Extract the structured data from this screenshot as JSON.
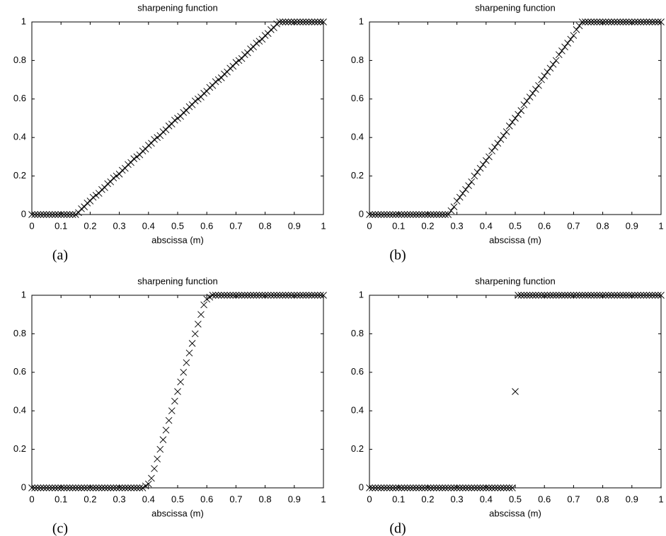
{
  "chart_data": [
    {
      "type": "scatter",
      "title": "sharpening function",
      "xlabel": "abscissa (m)",
      "panel_label": "(a)",
      "marker": "x",
      "color": "#000000",
      "x": [
        0,
        0.01,
        0.02,
        0.03,
        0.04,
        0.05,
        0.06,
        0.07,
        0.08,
        0.09,
        0.1,
        0.11,
        0.12,
        0.13,
        0.14,
        0.15,
        0.16,
        0.17,
        0.18,
        0.19,
        0.2,
        0.21,
        0.22,
        0.23,
        0.24,
        0.25,
        0.26,
        0.27,
        0.28,
        0.29,
        0.3,
        0.31,
        0.32,
        0.33,
        0.34,
        0.35,
        0.36,
        0.37,
        0.38,
        0.39,
        0.4,
        0.41,
        0.42,
        0.43,
        0.44,
        0.45,
        0.46,
        0.47,
        0.48,
        0.49,
        0.5,
        0.51,
        0.52,
        0.53,
        0.54,
        0.55,
        0.56,
        0.57,
        0.58,
        0.59,
        0.6,
        0.61,
        0.62,
        0.63,
        0.64,
        0.65,
        0.66,
        0.67,
        0.68,
        0.69,
        0.7,
        0.71,
        0.72,
        0.73,
        0.74,
        0.75,
        0.76,
        0.77,
        0.78,
        0.79,
        0.8,
        0.81,
        0.82,
        0.83,
        0.84,
        0.85,
        0.86,
        0.87,
        0.88,
        0.89,
        0.9,
        0.91,
        0.92,
        0.93,
        0.94,
        0.95,
        0.96,
        0.97,
        0.98,
        0.99,
        1
      ],
      "values": [
        0,
        0,
        0,
        0,
        0,
        0,
        0,
        0,
        0,
        0,
        0,
        0,
        0,
        0,
        0,
        0,
        0.01,
        0.03,
        0.04,
        0.06,
        0.07,
        0.09,
        0.1,
        0.11,
        0.13,
        0.14,
        0.16,
        0.17,
        0.19,
        0.2,
        0.21,
        0.23,
        0.24,
        0.26,
        0.27,
        0.29,
        0.3,
        0.31,
        0.33,
        0.34,
        0.36,
        0.37,
        0.39,
        0.4,
        0.41,
        0.43,
        0.44,
        0.46,
        0.47,
        0.49,
        0.5,
        0.51,
        0.53,
        0.54,
        0.56,
        0.57,
        0.59,
        0.6,
        0.61,
        0.63,
        0.64,
        0.66,
        0.67,
        0.69,
        0.7,
        0.71,
        0.73,
        0.74,
        0.76,
        0.77,
        0.79,
        0.8,
        0.81,
        0.83,
        0.84,
        0.86,
        0.87,
        0.89,
        0.9,
        0.91,
        0.93,
        0.94,
        0.96,
        0.97,
        0.99,
        1,
        1,
        1,
        1,
        1,
        1,
        1,
        1,
        1,
        1,
        1,
        1,
        1,
        1,
        1,
        1
      ],
      "xlim": [
        0,
        1
      ],
      "ylim": [
        0,
        1
      ],
      "xticks": [
        0,
        0.1,
        0.2,
        0.3,
        0.4,
        0.5,
        0.6,
        0.7,
        0.8,
        0.9,
        1
      ],
      "yticks": [
        0,
        0.2,
        0.4,
        0.6,
        0.8,
        1
      ]
    },
    {
      "type": "scatter",
      "title": "sharpening function",
      "xlabel": "abscissa (m)",
      "panel_label": "(b)",
      "marker": "x",
      "color": "#000000",
      "x": [
        0,
        0.01,
        0.02,
        0.03,
        0.04,
        0.05,
        0.06,
        0.07,
        0.08,
        0.09,
        0.1,
        0.11,
        0.12,
        0.13,
        0.14,
        0.15,
        0.16,
        0.17,
        0.18,
        0.19,
        0.2,
        0.21,
        0.22,
        0.23,
        0.24,
        0.25,
        0.26,
        0.27,
        0.28,
        0.29,
        0.3,
        0.31,
        0.32,
        0.33,
        0.34,
        0.35,
        0.36,
        0.37,
        0.38,
        0.39,
        0.4,
        0.41,
        0.42,
        0.43,
        0.44,
        0.45,
        0.46,
        0.47,
        0.48,
        0.49,
        0.5,
        0.51,
        0.52,
        0.53,
        0.54,
        0.55,
        0.56,
        0.57,
        0.58,
        0.59,
        0.6,
        0.61,
        0.62,
        0.63,
        0.64,
        0.65,
        0.66,
        0.67,
        0.68,
        0.69,
        0.7,
        0.71,
        0.72,
        0.73,
        0.74,
        0.75,
        0.76,
        0.77,
        0.78,
        0.79,
        0.8,
        0.81,
        0.82,
        0.83,
        0.84,
        0.85,
        0.86,
        0.87,
        0.88,
        0.89,
        0.9,
        0.91,
        0.92,
        0.93,
        0.94,
        0.95,
        0.96,
        0.97,
        0.98,
        0.99,
        1
      ],
      "values": [
        0,
        0,
        0,
        0,
        0,
        0,
        0,
        0,
        0,
        0,
        0,
        0,
        0,
        0,
        0,
        0,
        0,
        0,
        0,
        0,
        0,
        0,
        0,
        0,
        0,
        0,
        0,
        0,
        0.02,
        0.04,
        0.07,
        0.09,
        0.11,
        0.13,
        0.15,
        0.17,
        0.2,
        0.22,
        0.24,
        0.26,
        0.28,
        0.3,
        0.33,
        0.35,
        0.37,
        0.39,
        0.41,
        0.43,
        0.46,
        0.48,
        0.5,
        0.52,
        0.54,
        0.57,
        0.59,
        0.61,
        0.63,
        0.65,
        0.67,
        0.7,
        0.72,
        0.74,
        0.76,
        0.78,
        0.8,
        0.83,
        0.85,
        0.87,
        0.89,
        0.91,
        0.93,
        0.96,
        0.98,
        1,
        1,
        1,
        1,
        1,
        1,
        1,
        1,
        1,
        1,
        1,
        1,
        1,
        1,
        1,
        1,
        1,
        1,
        1,
        1,
        1,
        1,
        1,
        1,
        1,
        1,
        1,
        1
      ],
      "xlim": [
        0,
        1
      ],
      "ylim": [
        0,
        1
      ],
      "xticks": [
        0,
        0.1,
        0.2,
        0.3,
        0.4,
        0.5,
        0.6,
        0.7,
        0.8,
        0.9,
        1
      ],
      "yticks": [
        0,
        0.2,
        0.4,
        0.6,
        0.8,
        1
      ]
    },
    {
      "type": "scatter",
      "title": "sharpening function",
      "xlabel": "abscissa (m)",
      "panel_label": "(c)",
      "marker": "x",
      "color": "#000000",
      "x": [
        0,
        0.01,
        0.02,
        0.03,
        0.04,
        0.05,
        0.06,
        0.07,
        0.08,
        0.09,
        0.1,
        0.11,
        0.12,
        0.13,
        0.14,
        0.15,
        0.16,
        0.17,
        0.18,
        0.19,
        0.2,
        0.21,
        0.22,
        0.23,
        0.24,
        0.25,
        0.26,
        0.27,
        0.28,
        0.29,
        0.3,
        0.31,
        0.32,
        0.33,
        0.34,
        0.35,
        0.36,
        0.37,
        0.38,
        0.39,
        0.4,
        0.41,
        0.42,
        0.43,
        0.44,
        0.45,
        0.46,
        0.47,
        0.48,
        0.49,
        0.5,
        0.51,
        0.52,
        0.53,
        0.54,
        0.55,
        0.56,
        0.57,
        0.58,
        0.59,
        0.6,
        0.61,
        0.62,
        0.63,
        0.64,
        0.65,
        0.66,
        0.67,
        0.68,
        0.69,
        0.7,
        0.71,
        0.72,
        0.73,
        0.74,
        0.75,
        0.76,
        0.77,
        0.78,
        0.79,
        0.8,
        0.81,
        0.82,
        0.83,
        0.84,
        0.85,
        0.86,
        0.87,
        0.88,
        0.89,
        0.9,
        0.91,
        0.92,
        0.93,
        0.94,
        0.95,
        0.96,
        0.97,
        0.98,
        0.99,
        1
      ],
      "values": [
        0,
        0,
        0,
        0,
        0,
        0,
        0,
        0,
        0,
        0,
        0,
        0,
        0,
        0,
        0,
        0,
        0,
        0,
        0,
        0,
        0,
        0,
        0,
        0,
        0,
        0,
        0,
        0,
        0,
        0,
        0,
        0,
        0,
        0,
        0,
        0,
        0,
        0,
        0,
        0.01,
        0.02,
        0.05,
        0.1,
        0.15,
        0.2,
        0.25,
        0.3,
        0.35,
        0.4,
        0.45,
        0.5,
        0.55,
        0.6,
        0.65,
        0.7,
        0.75,
        0.8,
        0.85,
        0.9,
        0.95,
        0.98,
        0.99,
        1,
        1,
        1,
        1,
        1,
        1,
        1,
        1,
        1,
        1,
        1,
        1,
        1,
        1,
        1,
        1,
        1,
        1,
        1,
        1,
        1,
        1,
        1,
        1,
        1,
        1,
        1,
        1,
        1,
        1,
        1,
        1,
        1,
        1,
        1,
        1,
        1,
        1,
        1
      ],
      "xlim": [
        0,
        1
      ],
      "ylim": [
        0,
        1
      ],
      "xticks": [
        0,
        0.1,
        0.2,
        0.3,
        0.4,
        0.5,
        0.6,
        0.7,
        0.8,
        0.9,
        1
      ],
      "yticks": [
        0,
        0.2,
        0.4,
        0.6,
        0.8,
        1
      ]
    },
    {
      "type": "scatter",
      "title": "sharpening function",
      "xlabel": "abscissa (m)",
      "panel_label": "(d)",
      "marker": "x",
      "color": "#000000",
      "x": [
        0,
        0.01,
        0.02,
        0.03,
        0.04,
        0.05,
        0.06,
        0.07,
        0.08,
        0.09,
        0.1,
        0.11,
        0.12,
        0.13,
        0.14,
        0.15,
        0.16,
        0.17,
        0.18,
        0.19,
        0.2,
        0.21,
        0.22,
        0.23,
        0.24,
        0.25,
        0.26,
        0.27,
        0.28,
        0.29,
        0.3,
        0.31,
        0.32,
        0.33,
        0.34,
        0.35,
        0.36,
        0.37,
        0.38,
        0.39,
        0.4,
        0.41,
        0.42,
        0.43,
        0.44,
        0.45,
        0.46,
        0.47,
        0.48,
        0.49,
        0.5,
        0.51,
        0.52,
        0.53,
        0.54,
        0.55,
        0.56,
        0.57,
        0.58,
        0.59,
        0.6,
        0.61,
        0.62,
        0.63,
        0.64,
        0.65,
        0.66,
        0.67,
        0.68,
        0.69,
        0.7,
        0.71,
        0.72,
        0.73,
        0.74,
        0.75,
        0.76,
        0.77,
        0.78,
        0.79,
        0.8,
        0.81,
        0.82,
        0.83,
        0.84,
        0.85,
        0.86,
        0.87,
        0.88,
        0.89,
        0.9,
        0.91,
        0.92,
        0.93,
        0.94,
        0.95,
        0.96,
        0.97,
        0.98,
        0.99,
        1
      ],
      "values": [
        0,
        0,
        0,
        0,
        0,
        0,
        0,
        0,
        0,
        0,
        0,
        0,
        0,
        0,
        0,
        0,
        0,
        0,
        0,
        0,
        0,
        0,
        0,
        0,
        0,
        0,
        0,
        0,
        0,
        0,
        0,
        0,
        0,
        0,
        0,
        0,
        0,
        0,
        0,
        0,
        0,
        0,
        0,
        0,
        0,
        0,
        0,
        0,
        0,
        0,
        0.5,
        1,
        1,
        1,
        1,
        1,
        1,
        1,
        1,
        1,
        1,
        1,
        1,
        1,
        1,
        1,
        1,
        1,
        1,
        1,
        1,
        1,
        1,
        1,
        1,
        1,
        1,
        1,
        1,
        1,
        1,
        1,
        1,
        1,
        1,
        1,
        1,
        1,
        1,
        1,
        1,
        1,
        1,
        1,
        1,
        1,
        1,
        1,
        1,
        1,
        1
      ],
      "xlim": [
        0,
        1
      ],
      "ylim": [
        0,
        1
      ],
      "xticks": [
        0,
        0.1,
        0.2,
        0.3,
        0.4,
        0.5,
        0.6,
        0.7,
        0.8,
        0.9,
        1
      ],
      "yticks": [
        0,
        0.2,
        0.4,
        0.6,
        0.8,
        1
      ]
    }
  ]
}
